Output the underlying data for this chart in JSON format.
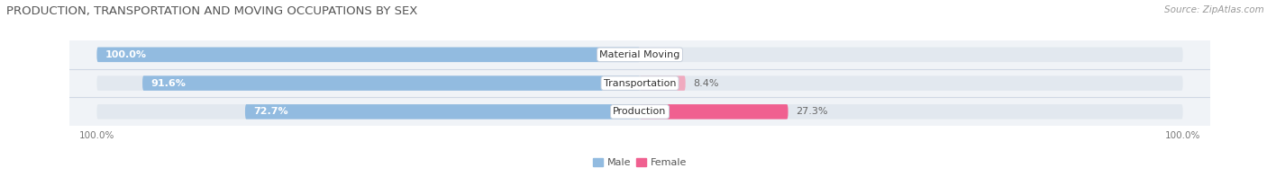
{
  "title": "PRODUCTION, TRANSPORTATION AND MOVING OCCUPATIONS BY SEX",
  "source": "Source: ZipAtlas.com",
  "categories": [
    "Material Moving",
    "Transportation",
    "Production"
  ],
  "male_values": [
    100.0,
    91.6,
    72.7
  ],
  "female_values": [
    0.0,
    8.4,
    27.3
  ],
  "male_color": "#92BBE0",
  "female_colors": [
    "#F0AABF",
    "#F0AABF",
    "#F06090"
  ],
  "legend_female_color": "#F06090",
  "bar_bg_color": "#E2E8EF",
  "row_bg_color": "#F0F3F7",
  "bar_height": 0.52,
  "figsize": [
    14.06,
    1.97
  ],
  "dpi": 100,
  "xlim_left": -105,
  "xlim_right": 105,
  "title_fontsize": 9.5,
  "source_fontsize": 7.5,
  "label_fontsize": 8,
  "cat_fontsize": 8,
  "legend_fontsize": 8,
  "tick_fontsize": 7.5,
  "axis_label_left": "100.0%",
  "axis_label_right": "100.0%"
}
